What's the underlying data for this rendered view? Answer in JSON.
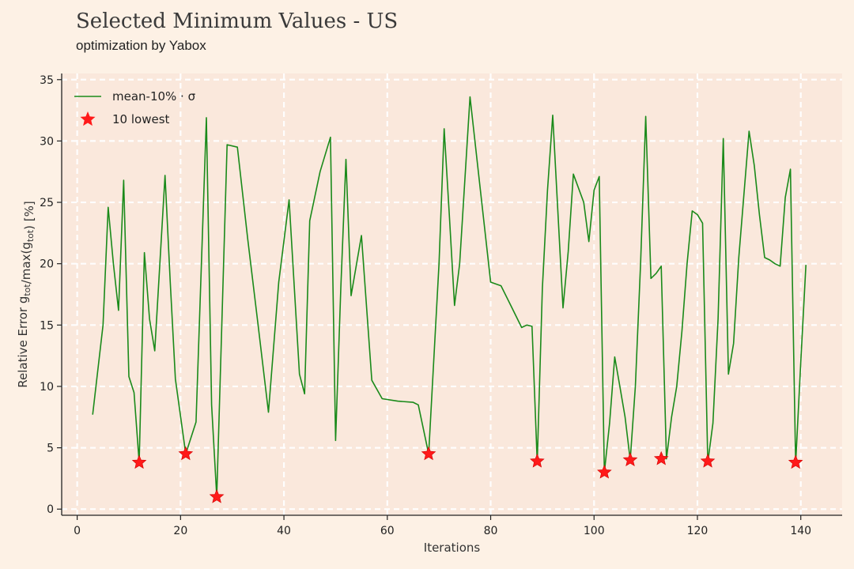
{
  "header": {
    "title": "Selected Minimum Values - US",
    "subtitle": "optimization by Yabox"
  },
  "chart_data": {
    "type": "line",
    "xlabel": "Iterations",
    "ylabel": "Relative Error g_tot/max(g_tot) [%]",
    "xlim": [
      -3,
      148
    ],
    "ylim": [
      -0.5,
      35.5
    ],
    "xticks": [
      0,
      20,
      40,
      60,
      80,
      100,
      120,
      140
    ],
    "yticks": [
      0,
      5,
      10,
      15,
      20,
      25,
      30,
      35
    ],
    "grid": true,
    "legend_position": "top-left",
    "colors": {
      "line": "#1a8a1a",
      "marker": "#ff1a1a",
      "plot_bg": "#fae8dc",
      "grid": "#ffffff"
    },
    "series": [
      {
        "name": "mean-10% · σ",
        "kind": "line",
        "x": [
          3,
          5,
          6,
          7,
          8,
          9,
          10,
          11,
          12,
          13,
          14,
          15,
          17,
          18,
          19,
          21,
          23,
          25,
          26,
          27,
          29,
          31,
          33,
          35,
          37,
          39,
          41,
          43,
          44,
          45,
          47,
          49,
          50,
          51,
          52,
          53,
          55,
          57,
          59,
          62,
          65,
          66,
          68,
          70,
          71,
          72,
          73,
          74,
          76,
          78,
          80,
          82,
          84,
          86,
          87,
          88,
          89,
          90,
          91,
          92,
          94,
          95,
          96,
          98,
          99,
          100,
          101,
          102,
          103,
          104,
          105,
          106,
          107,
          108,
          109,
          110,
          111,
          112,
          113,
          114,
          115,
          116,
          117,
          118,
          119,
          120,
          121,
          122,
          123,
          124,
          125,
          126,
          127,
          128,
          130,
          131,
          132,
          133,
          134,
          135,
          136,
          137,
          138,
          139,
          140,
          141
        ],
        "y": [
          7.7,
          15,
          24.6,
          20,
          16.2,
          26.8,
          10.8,
          9.5,
          3.8,
          20.9,
          15.5,
          12.9,
          27.2,
          18.5,
          10.6,
          4.5,
          7.1,
          31.9,
          8.5,
          1.0,
          29.7,
          29.5,
          22,
          15,
          7.9,
          18.5,
          25.2,
          11,
          9.4,
          23.5,
          27.5,
          30.3,
          5.6,
          18,
          28.5,
          17.4,
          22.3,
          10.5,
          9,
          8.8,
          8.7,
          8.5,
          4.5,
          20,
          31,
          24,
          16.6,
          20,
          33.6,
          26,
          18.5,
          18.2,
          16.5,
          14.8,
          15,
          14.9,
          3.8,
          18,
          26,
          32.1,
          16.4,
          21,
          27.3,
          25,
          21.8,
          26,
          27.1,
          3.0,
          7,
          12.4,
          10,
          7.5,
          4.0,
          10,
          20,
          32,
          18.8,
          19.2,
          19.8,
          4.1,
          7.5,
          10,
          14.5,
          20,
          24.3,
          24,
          23.3,
          3.8,
          7,
          15.5,
          30.2,
          11,
          13.5,
          20.5,
          30.8,
          28,
          24,
          20.5,
          20.3,
          20,
          19.8,
          25.4,
          27.7,
          3.7,
          12,
          19.9
        ]
      },
      {
        "name": "10 lowest",
        "kind": "scatter",
        "x": [
          12,
          21,
          27,
          68,
          89,
          102,
          107,
          113,
          122,
          139
        ],
        "y": [
          3.8,
          4.5,
          1.0,
          4.5,
          3.9,
          3.0,
          4.0,
          4.1,
          3.9,
          3.8
        ]
      }
    ]
  }
}
